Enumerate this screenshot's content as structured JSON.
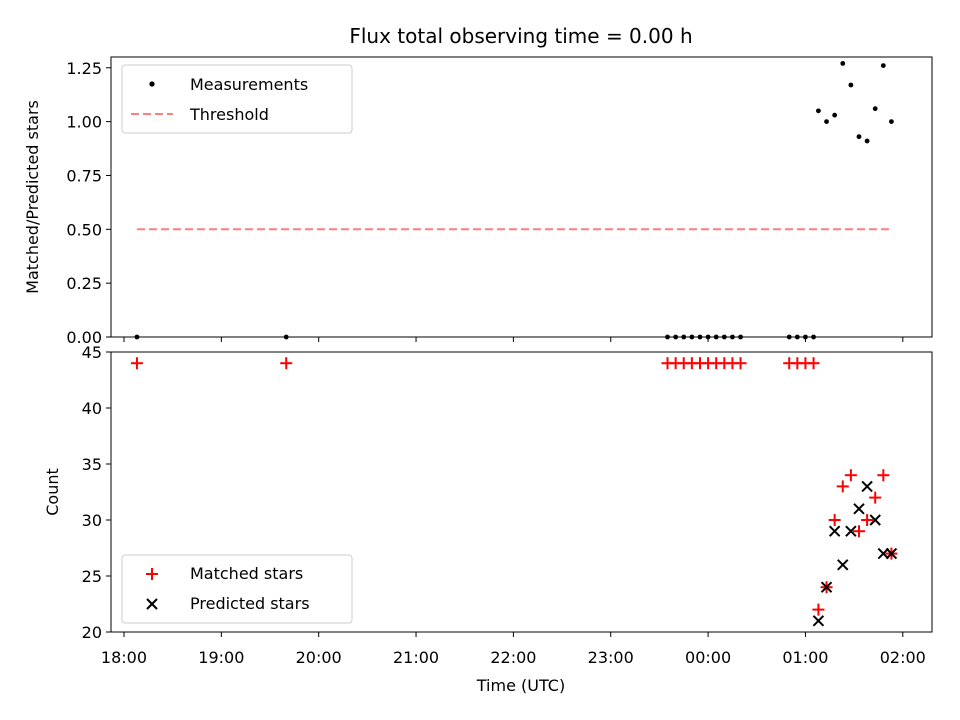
{
  "chart_data": [
    {
      "type": "scatter",
      "title": "Flux total observing time = 0.00 h",
      "xlabel": "",
      "ylabel": "Matched/Predicted stars",
      "xlim": [
        "17:52",
        "02:18"
      ],
      "ylim": [
        0,
        1.3
      ],
      "yticks": [
        "0.00",
        "0.25",
        "0.50",
        "0.75",
        "1.00",
        "1.25"
      ],
      "legend": "upper left",
      "series": [
        {
          "name": "Measurements",
          "kind": "points",
          "color": "#000000",
          "points": [
            [
              "18:08",
              0
            ],
            [
              "19:40",
              0
            ],
            [
              "23:35",
              0
            ],
            [
              "23:40",
              0
            ],
            [
              "23:45",
              0
            ],
            [
              "23:50",
              0
            ],
            [
              "23:55",
              0
            ],
            [
              "00:00",
              0
            ],
            [
              "00:05",
              0
            ],
            [
              "00:10",
              0
            ],
            [
              "00:15",
              0
            ],
            [
              "00:20",
              0
            ],
            [
              "00:50",
              0
            ],
            [
              "00:55",
              0
            ],
            [
              "01:00",
              0
            ],
            [
              "01:05",
              0
            ],
            [
              "01:08",
              1.05
            ],
            [
              "01:13",
              1.0
            ],
            [
              "01:18",
              1.03
            ],
            [
              "01:23",
              1.27
            ],
            [
              "01:28",
              1.17
            ],
            [
              "01:33",
              0.93
            ],
            [
              "01:38",
              0.91
            ],
            [
              "01:43",
              1.06
            ],
            [
              "01:48",
              1.26
            ],
            [
              "01:53",
              1.0
            ]
          ]
        },
        {
          "name": "Threshold",
          "kind": "dashed-line",
          "color": "#ff7f7f",
          "points": [
            [
              "18:08",
              0.5
            ],
            [
              "01:53",
              0.5
            ]
          ]
        }
      ]
    },
    {
      "type": "scatter",
      "title": "",
      "xlabel": "Time (UTC)",
      "ylabel": "Count",
      "xlim": [
        "17:52",
        "02:18"
      ],
      "ylim": [
        20,
        45
      ],
      "yticks": [
        "20",
        "25",
        "30",
        "35",
        "40",
        "45"
      ],
      "xticks": [
        "18:00",
        "19:00",
        "20:00",
        "21:00",
        "22:00",
        "23:00",
        "00:00",
        "01:00",
        "02:00"
      ],
      "legend": "lower left",
      "series": [
        {
          "name": "Matched stars",
          "marker": "+",
          "color": "#ff0000",
          "points": [
            [
              "18:08",
              44
            ],
            [
              "19:40",
              44
            ],
            [
              "23:35",
              44
            ],
            [
              "23:40",
              44
            ],
            [
              "23:45",
              44
            ],
            [
              "23:50",
              44
            ],
            [
              "23:55",
              44
            ],
            [
              "00:00",
              44
            ],
            [
              "00:05",
              44
            ],
            [
              "00:10",
              44
            ],
            [
              "00:15",
              44
            ],
            [
              "00:20",
              44
            ],
            [
              "00:50",
              44
            ],
            [
              "00:55",
              44
            ],
            [
              "01:00",
              44
            ],
            [
              "01:05",
              44
            ],
            [
              "01:08",
              22
            ],
            [
              "01:13",
              24
            ],
            [
              "01:18",
              30
            ],
            [
              "01:23",
              33
            ],
            [
              "01:28",
              34
            ],
            [
              "01:33",
              29
            ],
            [
              "01:38",
              30
            ],
            [
              "01:43",
              32
            ],
            [
              "01:48",
              34
            ],
            [
              "01:53",
              27
            ]
          ]
        },
        {
          "name": "Predicted stars",
          "marker": "x",
          "color": "#000000",
          "points": [
            [
              "01:08",
              21
            ],
            [
              "01:13",
              24
            ],
            [
              "01:18",
              29
            ],
            [
              "01:23",
              26
            ],
            [
              "01:28",
              29
            ],
            [
              "01:33",
              31
            ],
            [
              "01:38",
              33
            ],
            [
              "01:43",
              30
            ],
            [
              "01:48",
              27
            ],
            [
              "01:53",
              27
            ]
          ]
        }
      ]
    }
  ]
}
